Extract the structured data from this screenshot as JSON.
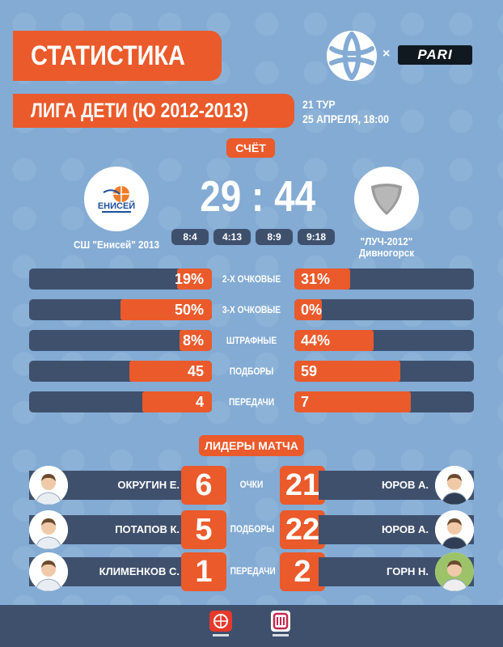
{
  "header": {
    "title": "СТАТИСТИКА",
    "league": "ЛИГА ДЕТИ (Ю 2012-2013)",
    "round": "21 ТУР",
    "date": "25 АПРЕЛЯ, 18:00",
    "sponsor": "PARI",
    "times": "×"
  },
  "score": {
    "label": "СЧЁТ",
    "value": "29 : 44",
    "quarters": [
      "8:4",
      "4:13",
      "8:9",
      "9:18"
    ]
  },
  "home": {
    "name": "СШ \"Енисей\" 2013",
    "logo_text": "ЕНИСЕЙ"
  },
  "away": {
    "name_line1": "\"ЛУЧ-2012\"",
    "name_line2": "Дивногорск"
  },
  "stats": [
    {
      "label": "2-Х ОЧКОВЫЕ",
      "home": "19%",
      "away": "31%",
      "home_frac": 0.19,
      "away_frac": 0.31
    },
    {
      "label": "3-Х ОЧКОВЫЕ",
      "home": "50%",
      "away": "0%",
      "home_frac": 0.5,
      "away_frac": 0.0
    },
    {
      "label": "ШТРАФНЫЕ",
      "home": "8%",
      "away": "44%",
      "home_frac": 0.08,
      "away_frac": 0.44
    },
    {
      "label": "ПОДБОРЫ",
      "home": "45",
      "away": "59",
      "home_frac": 0.45,
      "away_frac": 0.59
    },
    {
      "label": "ПЕРЕДАЧИ",
      "home": "4",
      "away": "7",
      "home_frac": 0.38,
      "away_frac": 0.65
    }
  ],
  "leaders": {
    "label": "ЛИДЕРЫ МАТЧА",
    "rows": [
      {
        "category": "ОЧКИ",
        "home_name": "ОКРУГИН Е.",
        "home_value": "6",
        "away_name": "ЮРОВ А.",
        "away_value": "21"
      },
      {
        "category": "ПОДБОРЫ",
        "home_name": "ПОТАПОВ К.",
        "home_value": "5",
        "away_name": "ЮРОВ А.",
        "away_value": "22"
      },
      {
        "category": "ПЕРЕДАЧИ",
        "home_name": "КЛИМЕНКОВ С.",
        "home_value": "1",
        "away_name": "ГОРН Н.",
        "away_value": "2"
      }
    ]
  },
  "colors": {
    "background": "#83abd4",
    "accent": "#ea5a2b",
    "navy": "#3f506d"
  }
}
